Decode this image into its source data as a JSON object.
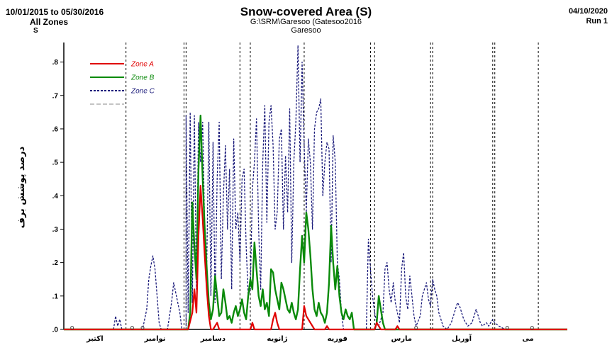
{
  "header": {
    "date_range": "10/01/2015 to 05/30/2016",
    "zones": "All Zones",
    "s_label": "S",
    "title": "Snow-covered Area (S)",
    "path": "G:\\SRM\\Garesoo (Gatesoo2016",
    "station": "Garesoo",
    "run_date": "04/10/2020",
    "run": "Run 1"
  },
  "chart_data": {
    "type": "line",
    "ylabel": "درصد پوشش برف",
    "ylim": [
      0,
      0.85
    ],
    "yticks": [
      ".0",
      ".1",
      ".2",
      ".3",
      ".4",
      ".5",
      ".6",
      ".7",
      ".8"
    ],
    "xlim": [
      0,
      243
    ],
    "month_labels": [
      "اکتبر",
      "نوامبر",
      "دسامبر",
      "ژانویه",
      "فوریه",
      "مارس",
      "آوریل",
      "می"
    ],
    "dashed_dividers": [
      30,
      58,
      59,
      85,
      90,
      116,
      148,
      150,
      177,
      178,
      207,
      208,
      229
    ],
    "grid": false,
    "legend_placement": "top-left",
    "legend_colors": {
      "Zone A": "#e00000",
      "Zone B": "#0a8a0a",
      "Zone C": "#1a1a7a",
      "Zone D": "#888888"
    },
    "series": [
      {
        "name": "Zone A",
        "color": "#e00000",
        "points": [
          [
            0,
            0
          ],
          [
            60,
            0
          ],
          [
            62,
            0.05
          ],
          [
            63,
            0.12
          ],
          [
            64,
            0.05
          ],
          [
            65,
            0.28
          ],
          [
            66,
            0.43
          ],
          [
            67,
            0.33
          ],
          [
            68,
            0.22
          ],
          [
            69,
            0.12
          ],
          [
            70,
            0.04
          ],
          [
            71,
            0.0
          ],
          [
            72,
            0.0
          ],
          [
            74,
            0.02
          ],
          [
            75,
            0
          ],
          [
            90,
            0
          ],
          [
            91,
            0.02
          ],
          [
            92,
            0
          ],
          [
            100,
            0
          ],
          [
            101,
            0.03
          ],
          [
            102,
            0.05
          ],
          [
            103,
            0.02
          ],
          [
            104,
            0
          ],
          [
            115,
            0
          ],
          [
            116,
            0.07
          ],
          [
            117,
            0.04
          ],
          [
            118,
            0.03
          ],
          [
            119,
            0.02
          ],
          [
            121,
            0
          ],
          [
            126,
            0
          ],
          [
            127,
            0.01
          ],
          [
            128,
            0
          ],
          [
            150,
            0
          ],
          [
            151,
            0.02
          ],
          [
            152,
            0.01
          ],
          [
            153,
            0
          ],
          [
            160,
            0
          ],
          [
            161,
            0.01
          ],
          [
            162,
            0
          ],
          [
            243,
            0
          ]
        ]
      },
      {
        "name": "Zone B",
        "color": "#0a8a0a",
        "points": [
          [
            0,
            0
          ],
          [
            60,
            0
          ],
          [
            61,
            0.05
          ],
          [
            62,
            0.38
          ],
          [
            63,
            0.25
          ],
          [
            64,
            0.15
          ],
          [
            65,
            0.48
          ],
          [
            66,
            0.64
          ],
          [
            67,
            0.45
          ],
          [
            68,
            0.3
          ],
          [
            69,
            0.18
          ],
          [
            70,
            0.08
          ],
          [
            71,
            0.03
          ],
          [
            72,
            0.06
          ],
          [
            73,
            0.16
          ],
          [
            74,
            0.1
          ],
          [
            75,
            0.04
          ],
          [
            76,
            0.05
          ],
          [
            77,
            0.12
          ],
          [
            78,
            0.08
          ],
          [
            79,
            0.03
          ],
          [
            80,
            0.04
          ],
          [
            81,
            0.02
          ],
          [
            82,
            0.05
          ],
          [
            83,
            0.07
          ],
          [
            84,
            0.04
          ],
          [
            85,
            0.06
          ],
          [
            86,
            0.09
          ],
          [
            87,
            0.05
          ],
          [
            88,
            0.03
          ],
          [
            89,
            0.1
          ],
          [
            90,
            0.15
          ],
          [
            91,
            0.12
          ],
          [
            92,
            0.26
          ],
          [
            93,
            0.18
          ],
          [
            94,
            0.1
          ],
          [
            95,
            0.07
          ],
          [
            96,
            0.12
          ],
          [
            97,
            0.06
          ],
          [
            98,
            0.08
          ],
          [
            99,
            0.04
          ],
          [
            100,
            0.18
          ],
          [
            101,
            0.17
          ],
          [
            102,
            0.12
          ],
          [
            103,
            0.09
          ],
          [
            104,
            0.06
          ],
          [
            105,
            0.14
          ],
          [
            106,
            0.12
          ],
          [
            107,
            0.09
          ],
          [
            108,
            0.06
          ],
          [
            109,
            0.05
          ],
          [
            110,
            0.08
          ],
          [
            111,
            0.05
          ],
          [
            112,
            0.03
          ],
          [
            113,
            0.06
          ],
          [
            114,
            0.18
          ],
          [
            115,
            0.28
          ],
          [
            116,
            0.2
          ],
          [
            117,
            0.35
          ],
          [
            118,
            0.3
          ],
          [
            119,
            0.22
          ],
          [
            120,
            0.12
          ],
          [
            121,
            0.06
          ],
          [
            122,
            0.04
          ],
          [
            123,
            0.08
          ],
          [
            124,
            0.05
          ],
          [
            125,
            0.04
          ],
          [
            126,
            0.02
          ],
          [
            127,
            0.05
          ],
          [
            128,
            0.14
          ],
          [
            129,
            0.31
          ],
          [
            130,
            0.2
          ],
          [
            131,
            0.12
          ],
          [
            132,
            0.19
          ],
          [
            133,
            0.1
          ],
          [
            134,
            0.05
          ],
          [
            135,
            0.03
          ],
          [
            136,
            0.06
          ],
          [
            137,
            0.04
          ],
          [
            138,
            0.03
          ],
          [
            139,
            0.05
          ],
          [
            140,
            0
          ],
          [
            150,
            0
          ],
          [
            151,
            0.02
          ],
          [
            152,
            0.1
          ],
          [
            153,
            0.06
          ],
          [
            154,
            0.02
          ],
          [
            155,
            0
          ],
          [
            243,
            0
          ]
        ]
      },
      {
        "name": "Zone C",
        "color": "#1a1a7a",
        "points": [
          [
            0,
            0
          ],
          [
            24,
            0
          ],
          [
            25,
            0.04
          ],
          [
            26,
            0.01
          ],
          [
            27,
            0.03
          ],
          [
            28,
            0
          ],
          [
            38,
            0
          ],
          [
            40,
            0.06
          ],
          [
            41,
            0.15
          ],
          [
            42,
            0.19
          ],
          [
            43,
            0.22
          ],
          [
            44,
            0.18
          ],
          [
            45,
            0.1
          ],
          [
            46,
            0.02
          ],
          [
            47,
            0
          ],
          [
            50,
            0
          ],
          [
            52,
            0.08
          ],
          [
            53,
            0.14
          ],
          [
            54,
            0.11
          ],
          [
            55,
            0.08
          ],
          [
            56,
            0.05
          ],
          [
            57,
            0
          ],
          [
            59,
            0
          ],
          [
            59,
            0.64
          ],
          [
            60,
            0.05
          ],
          [
            61,
            0.65
          ],
          [
            62,
            0.08
          ],
          [
            63,
            0.64
          ],
          [
            64,
            0.12
          ],
          [
            65,
            0.62
          ],
          [
            66,
            0.5
          ],
          [
            67,
            0.62
          ],
          [
            68,
            0.3
          ],
          [
            69,
            0.2
          ],
          [
            70,
            0.62
          ],
          [
            71,
            0.1
          ],
          [
            72,
            0.56
          ],
          [
            73,
            0.08
          ],
          [
            74,
            0.45
          ],
          [
            75,
            0.62
          ],
          [
            76,
            0.15
          ],
          [
            77,
            0.4
          ],
          [
            78,
            0.55
          ],
          [
            79,
            0.3
          ],
          [
            80,
            0.48
          ],
          [
            81,
            0.12
          ],
          [
            82,
            0.57
          ],
          [
            83,
            0.3
          ],
          [
            84,
            0.35
          ],
          [
            85,
            0.2
          ],
          [
            86,
            0.45
          ],
          [
            87,
            0.48
          ],
          [
            88,
            0.25
          ],
          [
            89,
            0.1
          ],
          [
            90,
            0.12
          ],
          [
            91,
            0.42
          ],
          [
            92,
            0.5
          ],
          [
            93,
            0.63
          ],
          [
            94,
            0.3
          ],
          [
            95,
            0.12
          ],
          [
            96,
            0.5
          ],
          [
            97,
            0.67
          ],
          [
            98,
            0.32
          ],
          [
            99,
            0.62
          ],
          [
            100,
            0.67
          ],
          [
            101,
            0.55
          ],
          [
            102,
            0.3
          ],
          [
            103,
            0.35
          ],
          [
            104,
            0.57
          ],
          [
            105,
            0.6
          ],
          [
            106,
            0.3
          ],
          [
            107,
            0.52
          ],
          [
            108,
            0.35
          ],
          [
            109,
            0.66
          ],
          [
            110,
            0.2
          ],
          [
            111,
            0.5
          ],
          [
            112,
            0.62
          ],
          [
            113,
            0.85
          ],
          [
            114,
            0.5
          ],
          [
            115,
            0.8
          ],
          [
            116,
            0.55
          ],
          [
            117,
            0.35
          ],
          [
            118,
            0.57
          ],
          [
            119,
            0.5
          ],
          [
            120,
            0.3
          ],
          [
            121,
            0.6
          ],
          [
            122,
            0.65
          ],
          [
            123,
            0.66
          ],
          [
            124,
            0.69
          ],
          [
            125,
            0.4
          ],
          [
            126,
            0.5
          ],
          [
            127,
            0.56
          ],
          [
            128,
            0.54
          ],
          [
            129,
            0.2
          ],
          [
            130,
            0.58
          ],
          [
            131,
            0.5
          ],
          [
            132,
            0.2
          ],
          [
            133,
            0.15
          ],
          [
            134,
            0.05
          ],
          [
            135,
            0
          ],
          [
            146,
            0
          ],
          [
            147,
            0.27
          ],
          [
            148,
            0.18
          ],
          [
            149,
            0.1
          ],
          [
            150,
            0.05
          ],
          [
            151,
            0.02
          ],
          [
            152,
            0.01
          ],
          [
            154,
            0.05
          ],
          [
            155,
            0.18
          ],
          [
            156,
            0.2
          ],
          [
            157,
            0.12
          ],
          [
            158,
            0.08
          ],
          [
            159,
            0.14
          ],
          [
            160,
            0.08
          ],
          [
            161,
            0.05
          ],
          [
            162,
            0.02
          ],
          [
            163,
            0.18
          ],
          [
            164,
            0.23
          ],
          [
            165,
            0.1
          ],
          [
            166,
            0.06
          ],
          [
            167,
            0.16
          ],
          [
            168,
            0.1
          ],
          [
            169,
            0.04
          ],
          [
            170,
            0.01
          ],
          [
            172,
            0.04
          ],
          [
            173,
            0.1
          ],
          [
            174,
            0.12
          ],
          [
            175,
            0.14
          ],
          [
            176,
            0.09
          ],
          [
            177,
            0.07
          ],
          [
            178,
            0.15
          ],
          [
            179,
            0.12
          ],
          [
            180,
            0.1
          ],
          [
            181,
            0.05
          ],
          [
            182,
            0.03
          ],
          [
            183,
            0.01
          ],
          [
            185,
            0
          ],
          [
            187,
            0.02
          ],
          [
            188,
            0.04
          ],
          [
            189,
            0.06
          ],
          [
            190,
            0.08
          ],
          [
            191,
            0.07
          ],
          [
            192,
            0.05
          ],
          [
            193,
            0.03
          ],
          [
            194,
            0.02
          ],
          [
            195,
            0.01
          ],
          [
            197,
            0.02
          ],
          [
            198,
            0.04
          ],
          [
            199,
            0.06
          ],
          [
            200,
            0.04
          ],
          [
            201,
            0.02
          ],
          [
            202,
            0.01
          ],
          [
            204,
            0.02
          ],
          [
            205,
            0.01
          ],
          [
            207,
            0.03
          ],
          [
            208,
            0.02
          ],
          [
            210,
            0.01
          ],
          [
            213,
            0
          ],
          [
            243,
            0
          ]
        ]
      }
    ]
  }
}
